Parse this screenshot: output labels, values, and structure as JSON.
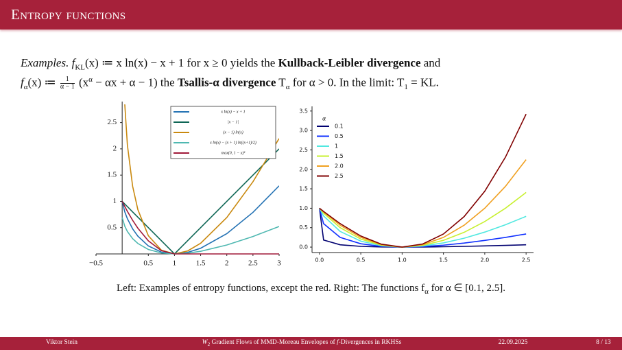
{
  "header": {
    "title": "Entropy functions"
  },
  "body": {
    "line1": [
      "Examples.",
      " f",
      "KL",
      "(x) ≔ x ln(x) − x + 1 for x ≥ 0 yields the ",
      "Kullback-Leibler divergence",
      " and"
    ],
    "line2": [
      "f",
      "α",
      "(x) ≔ ",
      "1",
      "α − 1",
      " (x",
      "α",
      " − αx + α − 1) the ",
      "Tsallis-α divergence",
      " T",
      "α",
      " for α > 0. In the limit: T",
      "1",
      " = KL."
    ]
  },
  "chart_data": [
    {
      "type": "line",
      "x": [
        0,
        0.05,
        0.1,
        0.2,
        0.3,
        0.5,
        0.75,
        1,
        1.25,
        1.5,
        2,
        2.5,
        3
      ],
      "series": [
        {
          "name": "x ln(x) − x + 1",
          "color": "#2271b3",
          "values": [
            1,
            0.8,
            0.67,
            0.478,
            0.339,
            0.153,
            0.034,
            0,
            0.029,
            0.108,
            0.386,
            0.791,
            1.296
          ]
        },
        {
          "name": "|x − 1|",
          "color": "#0e6655",
          "values": [
            1,
            0.95,
            0.9,
            0.8,
            0.7,
            0.5,
            0.25,
            0,
            0.25,
            0.5,
            1,
            1.5,
            2
          ]
        },
        {
          "name": "(x − 1) ln(x)",
          "color": "#c9890f",
          "values": [
            null,
            2.846,
            2.072,
            1.288,
            0.843,
            0.347,
            0.072,
            0,
            0.056,
            0.203,
            0.693,
            1.374,
            2.197
          ]
        },
        {
          "name": "x ln(x) − (x + 1) ln((x+1)/2)",
          "color": "#4fb8b1",
          "values": [
            0.693,
            0.527,
            0.427,
            0.291,
            0.199,
            0.085,
            0.018,
            0,
            0.014,
            0.05,
            0.17,
            0.332,
            0.523
          ]
        },
        {
          "name": "max(0, 1 − x)²",
          "color": "#a01838",
          "values": [
            1,
            0.9025,
            0.81,
            0.64,
            0.49,
            0.25,
            0.0625,
            0,
            0,
            0,
            0,
            0,
            0
          ]
        }
      ],
      "xlim": [
        -0.5,
        3
      ],
      "ylim": [
        0,
        2.9
      ],
      "xticks": [
        {
          "value": -0.5,
          "label": "−0.5"
        },
        0.5,
        1,
        1.5,
        2,
        2.5,
        3
      ],
      "yticks": [
        0.5,
        1,
        1.5,
        2,
        2.5
      ],
      "legend": "upper right"
    },
    {
      "type": "line",
      "x": [
        0,
        0.05,
        0.25,
        0.5,
        0.75,
        1,
        1.25,
        1.5,
        1.75,
        2,
        2.25,
        2.5
      ],
      "legend_title": "α",
      "series": [
        {
          "name": "0.1",
          "color": "#000070",
          "values": [
            1,
            0.182,
            0.06,
            0.019,
            0.004,
            0,
            0.003,
            0.01,
            0.019,
            0.031,
            0.045,
            0.06
          ]
        },
        {
          "name": "0.5",
          "color": "#1030ff",
          "values": [
            1,
            0.603,
            0.25,
            0.086,
            0.018,
            0,
            0.014,
            0.05,
            0.104,
            0.172,
            0.25,
            0.338
          ]
        },
        {
          "name": "1",
          "color": "#50e8e0",
          "values": [
            1,
            0.8,
            0.403,
            0.153,
            0.034,
            0,
            0.029,
            0.108,
            0.229,
            0.386,
            0.575,
            0.791
          ]
        },
        {
          "name": "1.5",
          "color": "#c8f030",
          "values": [
            1,
            0.872,
            0.5,
            0.207,
            0.049,
            0,
            0.045,
            0.174,
            0.38,
            0.657,
            1.0,
            1.406
          ]
        },
        {
          "name": "2.0",
          "color": "#f0a020",
          "values": [
            1,
            0.903,
            0.5625,
            0.25,
            0.0625,
            0,
            0.0625,
            0.25,
            0.5625,
            1,
            1.5625,
            2.25
          ]
        },
        {
          "name": "2.5",
          "color": "#800000",
          "values": [
            1,
            0.917,
            0.604,
            0.285,
            0.075,
            0,
            0.081,
            0.337,
            0.784,
            1.438,
            2.313,
            3.421
          ]
        }
      ],
      "xlim": [
        -0.09,
        2.59
      ],
      "ylim": [
        -0.14,
        3.62
      ],
      "xticks": [
        {
          "value": 0,
          "label": "0.0"
        },
        0.5,
        {
          "value": 1,
          "label": "1.0"
        },
        1.5,
        {
          "value": 2,
          "label": "2.0"
        },
        2.5
      ],
      "yticks": [
        {
          "value": 0,
          "label": "0.0"
        },
        0.5,
        {
          "value": 1,
          "label": "1.0"
        },
        1.5,
        {
          "value": 2,
          "label": "2.0"
        },
        2.5,
        {
          "value": 3,
          "label": "3.0"
        },
        3.5
      ],
      "legend": "upper left"
    }
  ],
  "caption": [
    "Left: Examples of entropy functions, except the red. Right: The functions f",
    "α",
    " for α ∈ [0.1, 2.5]."
  ],
  "footer": {
    "author": "Viktor Stein",
    "title": [
      "W",
      "2",
      " Gradient Flows of MMD-Moreau Envelopes of ",
      "f",
      "-Divergences in RKHSs"
    ],
    "date": "22.09.2025",
    "page": "8 / 13"
  }
}
